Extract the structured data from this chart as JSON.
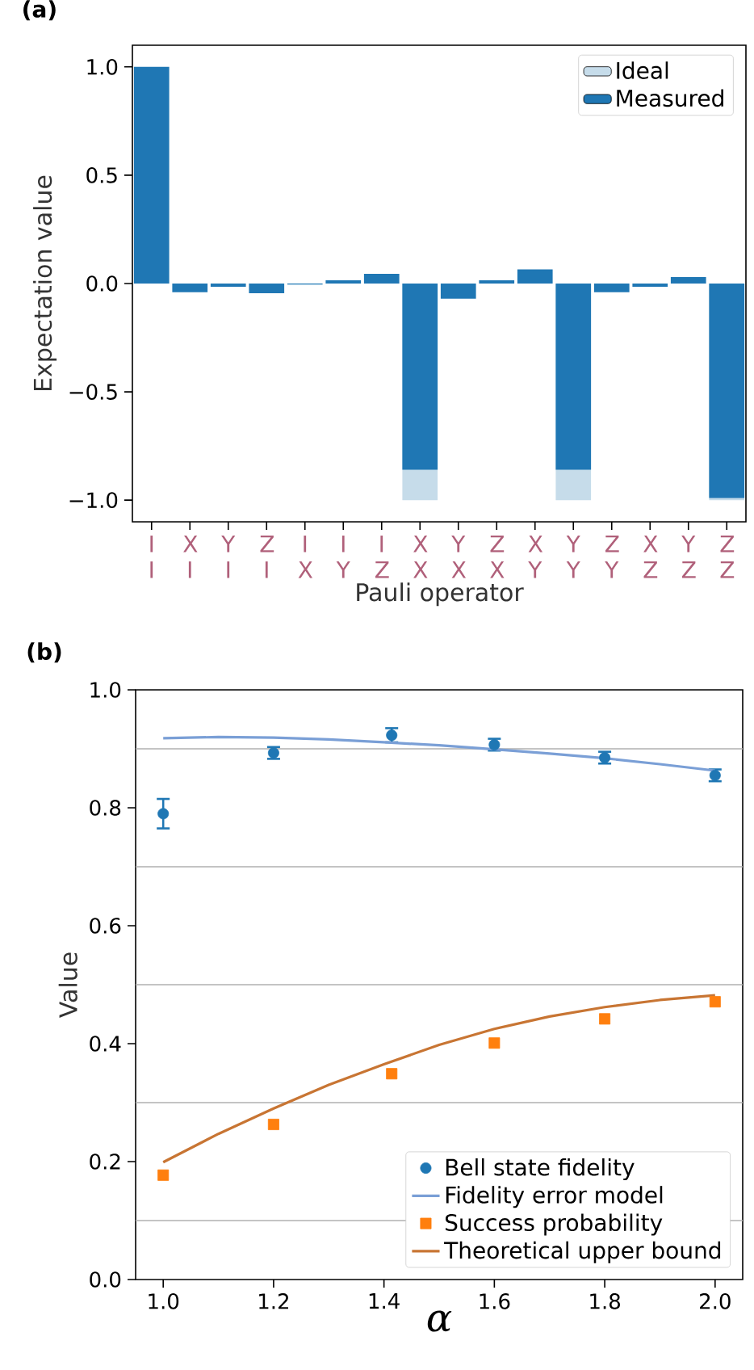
{
  "chart_data": [
    {
      "type": "bar",
      "title": "(a)",
      "xlabel": "Pauli operator",
      "ylabel": "Expectation value",
      "categories": [
        "I I",
        "X I",
        "Y I",
        "Z I",
        "I X",
        "I Y",
        "I Z",
        "X X",
        "Y X",
        "Z X",
        "X Y",
        "Y Y",
        "Z Y",
        "X Z",
        "Y Z",
        "Z Z"
      ],
      "series": [
        {
          "name": "Ideal",
          "color": "#c6dcea",
          "values": [
            null,
            0,
            0,
            0,
            0,
            0,
            0,
            -1,
            0,
            0,
            0,
            -1,
            0,
            0,
            0,
            -1
          ]
        },
        {
          "name": "Measured",
          "color": "#1f77b4",
          "values": [
            1.0,
            -0.04,
            -0.015,
            -0.045,
            -0.005,
            0.015,
            0.045,
            -0.86,
            -0.07,
            0.015,
            0.065,
            -0.86,
            -0.04,
            -0.015,
            0.03,
            -0.99
          ]
        }
      ],
      "ylim": [
        -1.1,
        1.1
      ],
      "yticks": [
        {
          "value": -1,
          "label": "−1.0"
        },
        {
          "value": -0.5,
          "label": "−0.5"
        },
        {
          "value": 0,
          "label": "0.0"
        },
        {
          "value": 0.5,
          "label": "0.5"
        },
        {
          "value": 1,
          "label": "1.0"
        }
      ],
      "legend": "top right"
    },
    {
      "type": "line",
      "title": "(b)",
      "xlabel": "α",
      "ylabel": "Value",
      "series": [
        {
          "name": "Bell state fidelity",
          "type": "scatter",
          "marker": "circle",
          "color": "#1f77b4",
          "x": [
            1.0,
            1.2,
            1.414,
            1.6,
            1.8,
            2.0
          ],
          "values": [
            0.79,
            0.893,
            0.923,
            0.907,
            0.885,
            0.855
          ],
          "errors": [
            0.025,
            0.01,
            0.012,
            0.01,
            0.01,
            0.01
          ]
        },
        {
          "name": "Fidelity error model",
          "type": "line",
          "color": "#7a9fd6",
          "x": [
            1.0,
            1.1,
            1.2,
            1.3,
            1.4,
            1.5,
            1.6,
            1.7,
            1.8,
            1.9,
            2.0
          ],
          "values": [
            0.918,
            0.92,
            0.919,
            0.916,
            0.911,
            0.906,
            0.899,
            0.892,
            0.884,
            0.874,
            0.863
          ]
        },
        {
          "name": "Success probability",
          "type": "scatter",
          "marker": "square",
          "color": "#ff7f0e",
          "x": [
            1.0,
            1.2,
            1.414,
            1.6,
            1.8,
            2.0
          ],
          "values": [
            0.177,
            0.263,
            0.349,
            0.401,
            0.442,
            0.471
          ]
        },
        {
          "name": "Theoretical upper bound",
          "type": "line",
          "color": "#c87533",
          "x": [
            1.0,
            1.1,
            1.2,
            1.3,
            1.4,
            1.5,
            1.6,
            1.7,
            1.8,
            1.9,
            2.0
          ],
          "values": [
            0.199,
            0.247,
            0.29,
            0.33,
            0.365,
            0.398,
            0.425,
            0.446,
            0.462,
            0.474,
            0.482
          ]
        }
      ],
      "xlim": [
        0.95,
        2.05
      ],
      "ylim": [
        0,
        1
      ],
      "xticks": [
        {
          "value": 1,
          "label": "1.0"
        },
        {
          "value": 1.2,
          "label": "1.2"
        },
        {
          "value": 1.4,
          "label": "1.4"
        },
        {
          "value": 1.6,
          "label": "1.6"
        },
        {
          "value": 1.8,
          "label": "1.8"
        },
        {
          "value": 2,
          "label": "2.0"
        }
      ],
      "yticks": [
        {
          "value": 0,
          "label": "0.0"
        },
        {
          "value": 0.2,
          "label": "0.2"
        },
        {
          "value": 0.4,
          "label": "0.4"
        },
        {
          "value": 0.6,
          "label": "0.6"
        },
        {
          "value": 0.8,
          "label": "0.8"
        },
        {
          "value": 1,
          "label": "1.0"
        }
      ],
      "ref_lines": [
        {
          "axis": "y",
          "value": 0.1,
          "color": "#b0b0b0"
        },
        {
          "axis": "y",
          "value": 0.3,
          "color": "#b0b0b0"
        },
        {
          "axis": "y",
          "value": 0.5,
          "color": "#b0b0b0"
        },
        {
          "axis": "y",
          "value": 0.7,
          "color": "#b0b0b0"
        },
        {
          "axis": "y",
          "value": 0.9,
          "color": "#b0b0b0"
        }
      ],
      "legend": "bottom right"
    }
  ]
}
